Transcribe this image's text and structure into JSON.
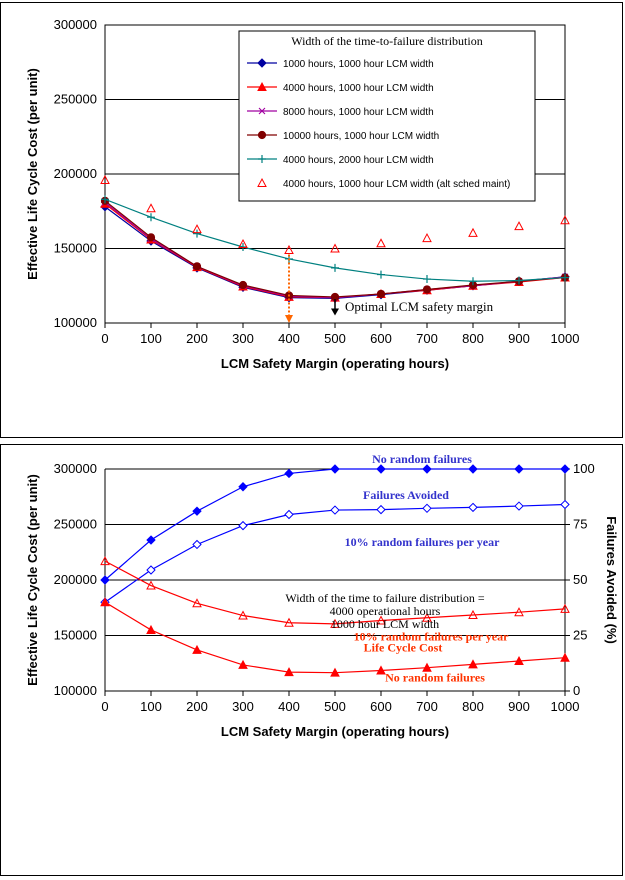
{
  "chart_data": [
    {
      "type": "line",
      "title": "",
      "xlabel": "LCM Safety Margin (operating hours)",
      "ylabel": "Effective Life Cycle Cost (per unit)",
      "xlim": [
        0,
        1000
      ],
      "ylim": [
        100000,
        300000
      ],
      "xticks": [
        "0",
        "100",
        "200",
        "300",
        "400",
        "500",
        "600",
        "700",
        "800",
        "900",
        "1000"
      ],
      "yticks": [
        "100000",
        "150000",
        "200000",
        "250000",
        "300000"
      ],
      "grid": "horizontal",
      "legend_title": "Width of the time-to-failure distribution",
      "legend_position": "top-right",
      "x": [
        0,
        100,
        200,
        300,
        400,
        500,
        600,
        700,
        800,
        900,
        1000
      ],
      "series": [
        {
          "name": "1000 hours, 1000 hour LCM width",
          "marker": "diamond",
          "color": "#0000a0",
          "line": true,
          "values": [
            178000,
            155000,
            137000,
            124000,
            117000,
            116500,
            119000,
            122000,
            125000,
            128000,
            131000
          ]
        },
        {
          "name": "4000 hours, 1000 hour LCM width",
          "marker": "triangle",
          "color": "#ff0000",
          "line": true,
          "values": [
            180000,
            156000,
            137500,
            124500,
            117500,
            117000,
            119500,
            122000,
            125000,
            127500,
            130500
          ]
        },
        {
          "name": "8000 hours, 1000 hour LCM width",
          "marker": "star",
          "color": "#a000a0",
          "line": true,
          "values": [
            181000,
            156500,
            138000,
            125000,
            118000,
            117000,
            119500,
            122500,
            125000,
            128000,
            131000
          ]
        },
        {
          "name": "10000 hours, 1000 hour LCM width",
          "marker": "circle",
          "color": "#800000",
          "line": true,
          "values": [
            182000,
            157500,
            138000,
            125500,
            118500,
            117500,
            119500,
            122500,
            125500,
            128000,
            130500
          ]
        },
        {
          "name": "4000 hours, 2000 hour LCM width",
          "marker": "plus",
          "color": "#008080",
          "line": true,
          "values": [
            183000,
            171000,
            160000,
            151000,
            143000,
            137000,
            132500,
            129500,
            128000,
            128500,
            130500
          ]
        },
        {
          "name": "4000 hours, 1000 hour LCM width (alt sched maint)",
          "marker": "open-triangle",
          "color": "#ff0000",
          "line": false,
          "values": [
            196000,
            177000,
            163000,
            153000,
            149000,
            150000,
            153500,
            157000,
            160500,
            165000,
            169000
          ]
        }
      ],
      "annotations": {
        "optimal_label": "Optimal LCM safety margin",
        "optimal_x": 500,
        "optimal_arrow_from": 116000,
        "optimal_arrow_to": 105000,
        "dotted_arrow_x": 400,
        "dotted_arrow_from": 146000,
        "dotted_arrow_to": 100000,
        "dotted_arrow_color": "#ff6600"
      }
    },
    {
      "type": "line",
      "title": "",
      "xlabel": "LCM Safety Margin (operating hours)",
      "ylabel": "Effective Life Cycle Cost (per unit)",
      "y2label": "Failures Avoided (%)",
      "xlim": [
        0,
        1000
      ],
      "ylim": [
        100000,
        300000
      ],
      "y2lim": [
        0,
        100
      ],
      "xticks": [
        "0",
        "100",
        "200",
        "300",
        "400",
        "500",
        "600",
        "700",
        "800",
        "900",
        "1000"
      ],
      "yticks": [
        "100000",
        "150000",
        "200000",
        "250000",
        "300000"
      ],
      "y2ticks": [
        "0",
        "25",
        "50",
        "75",
        "100"
      ],
      "grid": "horizontal",
      "x": [
        0,
        100,
        200,
        300,
        400,
        500,
        600,
        700,
        800,
        900,
        1000
      ],
      "series": [
        {
          "axis": "right",
          "marker": "diamond",
          "color": "#0000ff",
          "values": [
            50,
            68,
            81,
            92,
            98,
            100,
            100,
            100,
            100,
            100,
            100
          ]
        },
        {
          "axis": "right",
          "marker": "open-diamond",
          "color": "#0000ff",
          "values": [
            40,
            54.5,
            66,
            74.5,
            79.5,
            81.5,
            81.7,
            82.3,
            82.7,
            83.3,
            84
          ]
        },
        {
          "axis": "left",
          "marker": "open-triangle",
          "color": "#ff0000",
          "values": [
            217000,
            195000,
            179000,
            168000,
            161500,
            160500,
            163500,
            166000,
            168500,
            171000,
            174000
          ]
        },
        {
          "axis": "left",
          "marker": "triangle",
          "color": "#ff0000",
          "values": [
            180000,
            155000,
            137000,
            123500,
            117000,
            116500,
            118500,
            121000,
            124000,
            127000,
            130000
          ]
        }
      ],
      "annotations": {
        "no_random_top": "No random failures",
        "failures_avoided": "Failures Avoided",
        "ten_pct_top": "10% random failures per year",
        "width_line1": "Width of the time to failure distribution =",
        "width_line2": "4000 operational hours",
        "width_line3": "1000 hour LCM width",
        "ten_pct_bottom": "10% random failures per year",
        "life_cycle_cost": "Life Cycle Cost",
        "no_random_bottom": "No random failures",
        "blue_label_color": "#3333cc",
        "red_label_color": "#ff3300"
      }
    }
  ]
}
